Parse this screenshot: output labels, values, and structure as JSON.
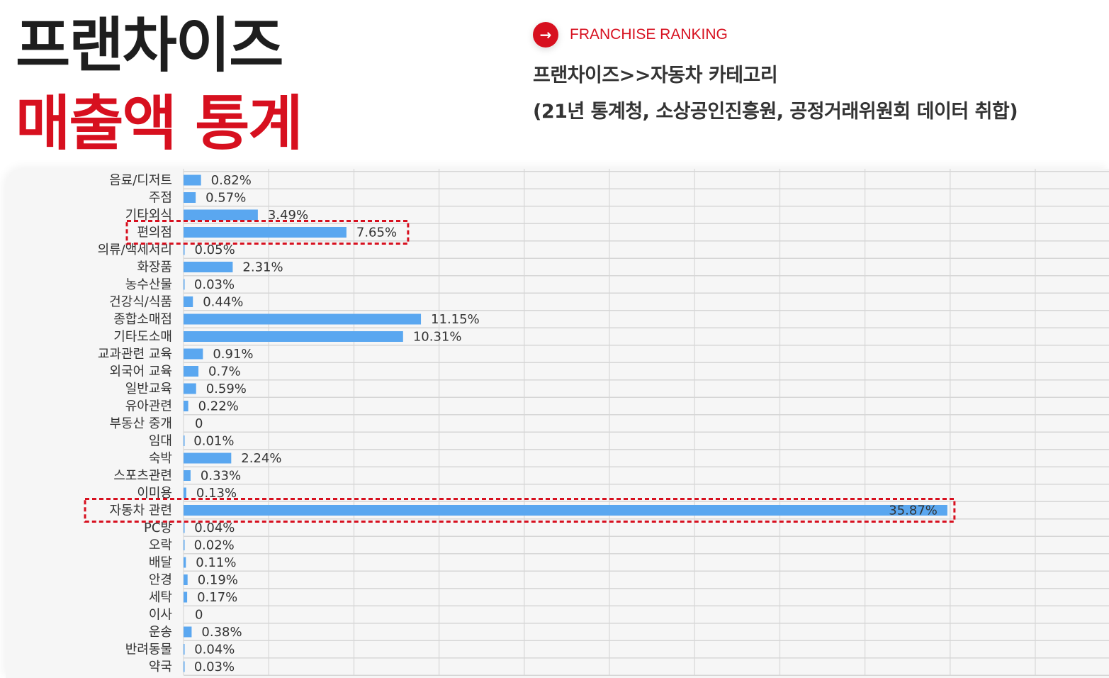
{
  "header": {
    "title_line1": "프랜차이즈",
    "title_line2": "매출액 통계",
    "ranking_icon": "right-arrow-icon",
    "ranking_label": "FRANCHISE RANKING",
    "info_line1": "프랜차이즈>>자동차 카테고리",
    "info_line2": "(21년 통계청, 소상공인진흥원, 공정거래위원회 데이터 취합)"
  },
  "colors": {
    "accent": "#d7101f",
    "bar": "#5aa7f0",
    "title": "#1e1e1e"
  },
  "chart_data": {
    "type": "bar",
    "orientation": "horizontal",
    "categories": [
      "음료/디저트",
      "주점",
      "기타외식",
      "편의점",
      "의류/액세서리",
      "화장품",
      "농수산물",
      "건강식/식품",
      "종합소매점",
      "기타도소매",
      "교과관련 교육",
      "외국어 교육",
      "일반교육",
      "유아관련",
      "부동산 중개",
      "임대",
      "숙박",
      "스포츠관련",
      "이미용",
      "자동차 관련",
      "PC방",
      "오락",
      "배달",
      "안경",
      "세탁",
      "이사",
      "운송",
      "반려동물",
      "약국"
    ],
    "values": [
      0.82,
      0.57,
      3.49,
      7.65,
      0.05,
      2.31,
      0.03,
      0.44,
      11.15,
      10.31,
      0.91,
      0.7,
      0.59,
      0.22,
      0,
      0.01,
      2.24,
      0.33,
      0.13,
      35.87,
      0.04,
      0.02,
      0.11,
      0.19,
      0.17,
      0,
      0.38,
      0.04,
      0.03
    ],
    "labels": [
      "0.82%",
      "0.57%",
      "3.49%",
      "7.65%",
      "0.05%",
      "2.31%",
      "0.03%",
      "0.44%",
      "11.15%",
      "10.31%",
      "0.91%",
      "0.7%",
      "0.59%",
      "0.22%",
      "0",
      "0.01%",
      "2.24%",
      "0.33%",
      "0.13%",
      "35.87%",
      "0.04%",
      "0.02%",
      "0.11%",
      "0.19%",
      "0.17%",
      "0",
      "0.38%",
      "0.04%",
      "0.03%"
    ],
    "unit": "%",
    "xlim": [
      0,
      40
    ],
    "grid": true,
    "highlighted": [
      "편의점",
      "자동차 관련"
    ],
    "label_inside_bar": [
      "자동차 관련"
    ]
  }
}
